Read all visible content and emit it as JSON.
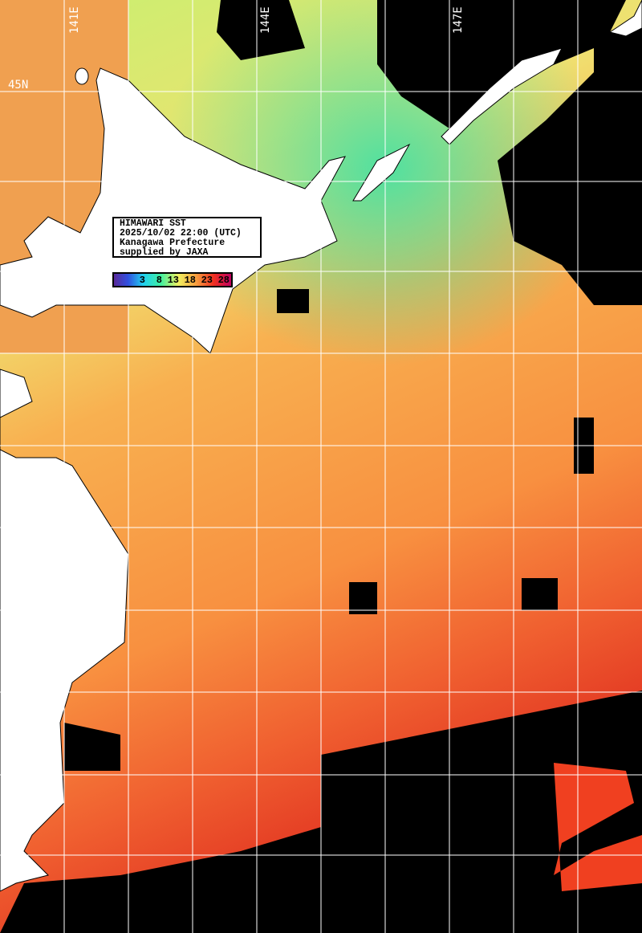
{
  "title_box": {
    "line1": "HIMAWARI SST",
    "line2": "2025/10/02 22:00 (UTC)",
    "line3": "Kanagawa Prefecture",
    "line4": "supplied by JAXA"
  },
  "color_scale": {
    "ticks": [
      "3",
      "8",
      "13",
      "18",
      "23",
      "28"
    ],
    "colors": [
      "#5a2a9a",
      "#3050e0",
      "#20d0f0",
      "#40f0a0",
      "#f0f060",
      "#f8a040",
      "#f03020",
      "#c00060"
    ]
  },
  "grid_labels": {
    "lon": [
      "141E",
      "144E",
      "147E"
    ],
    "lat": [
      "45N"
    ]
  },
  "colors": {
    "land": "#ffffff",
    "cloud": "#000000",
    "grid": "#ffffff"
  }
}
